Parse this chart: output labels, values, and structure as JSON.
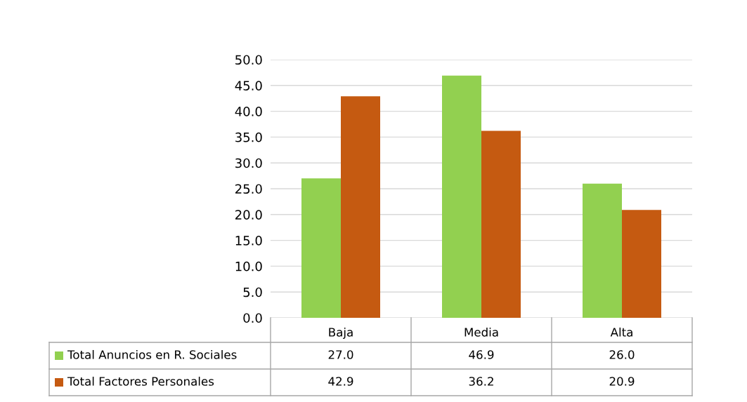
{
  "chart_data": {
    "type": "bar",
    "categories": [
      "Baja",
      "Media",
      "Alta"
    ],
    "series": [
      {
        "name": "Total Anuncios en R. Sociales",
        "color": "#92d050",
        "values": [
          27.0,
          46.9,
          26.0
        ],
        "value_labels": [
          "27.0",
          "46.9",
          "26.0"
        ]
      },
      {
        "name": "Total Factores Personales",
        "color": "#c55a11",
        "values": [
          42.9,
          36.2,
          20.9
        ],
        "value_labels": [
          "42.9",
          "36.2",
          "20.9"
        ]
      }
    ],
    "ylim": [
      0,
      50
    ],
    "yticks": [
      {
        "value": 0,
        "label": "0.0"
      },
      {
        "value": 5,
        "label": "5.0"
      },
      {
        "value": 10,
        "label": "10.0"
      },
      {
        "value": 15,
        "label": "15.0"
      },
      {
        "value": 20,
        "label": "20.0"
      },
      {
        "value": 25,
        "label": "25.0"
      },
      {
        "value": 30,
        "label": "30.0"
      },
      {
        "value": 35,
        "label": "35.0"
      },
      {
        "value": 40,
        "label": "40.0"
      },
      {
        "value": 45,
        "label": "45.0"
      },
      {
        "value": 50,
        "label": "50.0"
      }
    ],
    "grid": "y",
    "legend": "bottom"
  }
}
